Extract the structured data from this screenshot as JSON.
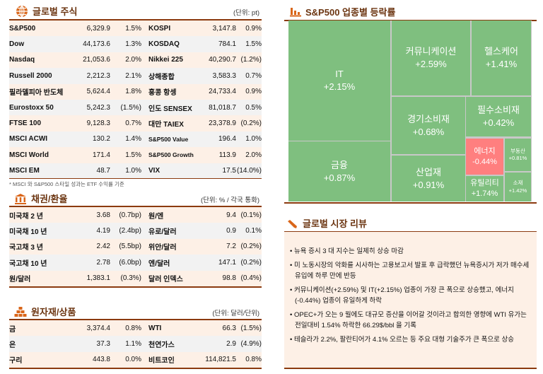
{
  "stocks": {
    "title": "글로벌 주식",
    "unit": "(단위: pt)",
    "icon": "globe-icon",
    "rows": [
      [
        "S&P500",
        "6,329.9",
        "1.5%",
        "KOSPI",
        "3,147.8",
        "0.9%"
      ],
      [
        "Dow",
        "44,173.6",
        "1.3%",
        "KOSDAQ",
        "784.1",
        "1.5%"
      ],
      [
        "Nasdaq",
        "21,053.6",
        "2.0%",
        "Nikkei 225",
        "40,290.7",
        "(1.2%)"
      ],
      [
        "Russell 2000",
        "2,212.3",
        "2.1%",
        "상해종합",
        "3,583.3",
        "0.7%"
      ],
      [
        "필라델피아 반도체",
        "5,624.4",
        "1.8%",
        "홍콩 항셍",
        "24,733.4",
        "0.9%"
      ],
      [
        "Eurostoxx 50",
        "5,242.3",
        "(1.5%)",
        "인도 SENSEX",
        "81,018.7",
        "0.5%"
      ],
      [
        "FTSE 100",
        "9,128.3",
        "0.7%",
        "대만 TAIEX",
        "23,378.9",
        "(0.2%)"
      ],
      [
        "MSCI ACWI",
        "130.2",
        "1.4%",
        "S&P500 Value",
        "196.4",
        "1.0%"
      ],
      [
        "MSCI World",
        "171.4",
        "1.5%",
        "S&P500 Growth",
        "113.9",
        "2.0%"
      ],
      [
        "MSCI EM",
        "48.7",
        "1.0%",
        "VIX",
        "17.5",
        "(14.0%)"
      ]
    ],
    "note": "* MSCI 와 S&P500 스타일 성과는 ETF 수익률 기준"
  },
  "bonds": {
    "title": "채권/환율",
    "unit": "(단위: % / 각국 통화)",
    "icon": "bank-icon",
    "rows": [
      [
        "미국채 2 년",
        "3.68",
        "(0.7bp)",
        "원/엔",
        "9.4",
        "(0.1%)"
      ],
      [
        "미국채 10 년",
        "4.19",
        "(2.4bp)",
        "유로/달러",
        "0.9",
        "0.1%"
      ],
      [
        "국고채 3 년",
        "2.42",
        "(5.5bp)",
        "위안/달러",
        "7.2",
        "(0.2%)"
      ],
      [
        "국고채 10 년",
        "2.78",
        "(6.0bp)",
        "엔/달러",
        "147.1",
        "(0.2%)"
      ],
      [
        "원/달러",
        "1,383.1",
        "(0.3%)",
        "달러 인덱스",
        "98.8",
        "(0.4%)"
      ]
    ]
  },
  "commodities": {
    "title": "원자재/상품",
    "unit": "(단위: 달러/단위)",
    "icon": "gold-bars-icon",
    "rows": [
      [
        "금",
        "3,374.4",
        "0.8%",
        "WTI",
        "66.3",
        "(1.5%)"
      ],
      [
        "은",
        "37.3",
        "1.1%",
        "천연가스",
        "2.9",
        "(4.9%)"
      ],
      [
        "구리",
        "443.8",
        "0.0%",
        "비트코인",
        "114,821.5",
        "0.8%"
      ]
    ]
  },
  "sectors": {
    "title": "S&P500 업종별 등락률",
    "icon": "bar-chart-icon",
    "colors": {
      "positive": "#7fbf7f",
      "negative": "#ff7f7f"
    },
    "items": [
      {
        "name": "IT",
        "change": "+2.15%"
      },
      {
        "name": "금융",
        "change": "+0.87%"
      },
      {
        "name": "커뮤니케이션",
        "change": "+2.59%"
      },
      {
        "name": "헬스케어",
        "change": "+1.41%"
      },
      {
        "name": "경기소비재",
        "change": "+0.68%"
      },
      {
        "name": "필수소비재",
        "change": "+0.42%"
      },
      {
        "name": "산업재",
        "change": "+0.91%"
      },
      {
        "name": "에너지",
        "change": "-0.44%"
      },
      {
        "name": "부동산",
        "change": "+0.81%"
      },
      {
        "name": "유틸리티",
        "change": "+1.74%"
      },
      {
        "name": "소재",
        "change": "+1.42%"
      }
    ]
  },
  "review": {
    "title": "글로벌 시장 리뷰",
    "icon": "pencil-icon",
    "bullets": [
      "뉴욕 증시 3 대 지수는 일제히 상승 마감",
      "미 노동시장의 악화를 시사하는 고용보고서 발표 후 급락했던 뉴욕증시가 저가 매수세 유입에 하루 만에 반등",
      "커뮤니케이션(+2.59%) 및 IT(+2.15%) 업종이 가장 큰 폭으로 상승했고, 에너지(-0.44%) 업종이 유일하게 하락",
      "OPEC+가 오는 9 월에도 대규모 증산을 이어갈 것이라고 합의한 영향에 WTI 유가는 전일대비 1.54% 하락한 66.29$/bbl 을 기록",
      "테슬라가 2.2%, 팔란티어가 4.1% 오르는 등 주요 대형 기술주가 큰 폭으로 상승"
    ]
  }
}
